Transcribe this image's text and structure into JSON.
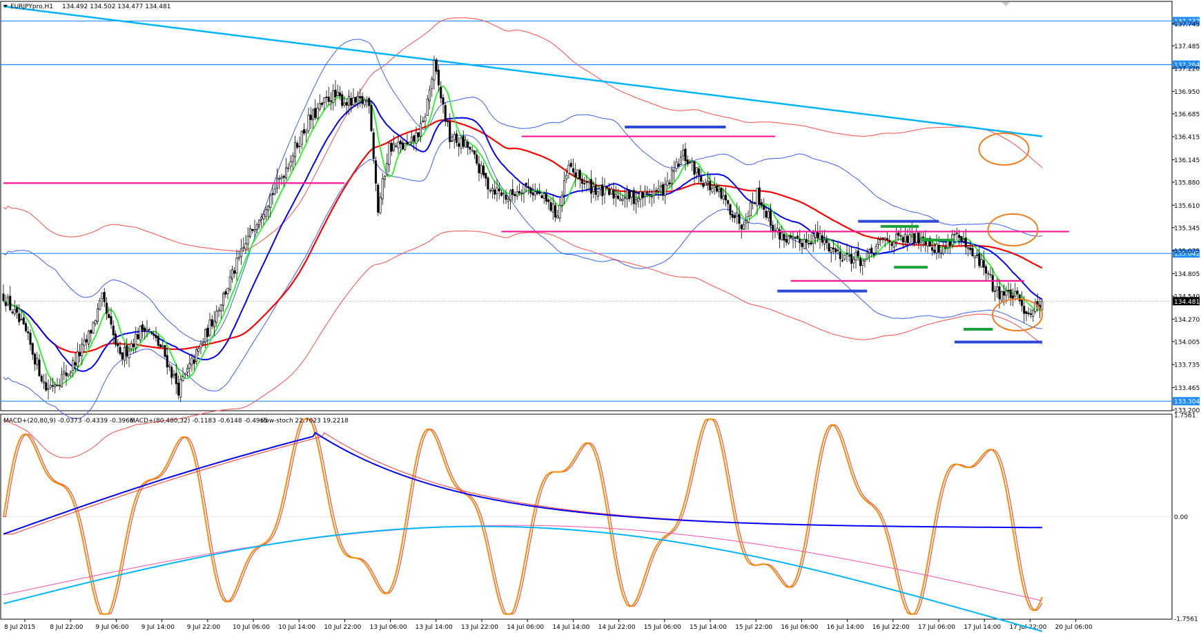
{
  "header": {
    "symbol": "EURJPYpro,H1",
    "ohlc": "134.492 134.502 134.477 134.481"
  },
  "indicator_header": {
    "macd_fast": "MACD+(20,80,9) -0.0373 -0.4339 -0.3966",
    "macd_slow": "MACD+(80,480,32) -0.1183 -0.6148 -0.4965",
    "stoch": "slow-stoch 22.7023 19.2218"
  },
  "colors": {
    "candle": "#000000",
    "ema_green": "#00ff00",
    "ma_blue": "#0000ff",
    "ma_red": "#ff0000",
    "ma_cyan": "#00b4ff",
    "band_blue": "#3a5bff",
    "band_red": "#ff4a4a",
    "level_line": "#1e8cff",
    "level_label_bg": "#1e8cff",
    "magenta": "#ff1493",
    "annot_blue": "#2b47d6",
    "annot_green": "#1aa33a",
    "annot_orange": "#f07d1a",
    "stoch_orange": "#ff8c00",
    "macd_pink": "#ff4fa8"
  },
  "chart_data": [
    {
      "type": "candlestick",
      "symbol": "EURJPYpro",
      "timeframe": "H1",
      "ylim": [
        133.2,
        138.0
      ],
      "y_ticks": [
        "137.745",
        "137.485",
        "137.220",
        "136.950",
        "136.685",
        "136.415",
        "136.145",
        "135.880",
        "135.610",
        "135.345",
        "135.075",
        "134.805",
        "134.540",
        "134.270",
        "134.005",
        "133.735",
        "133.465",
        "133.200"
      ],
      "x_ticks": [
        "8 Jul 2015",
        "8 Jul 22:00",
        "9 Jul 06:00",
        "9 Jul 14:00",
        "9 Jul 22:00",
        "10 Jul 06:00",
        "10 Jul 14:00",
        "10 Jul 22:00",
        "13 Jul 06:00",
        "13 Jul 14:00",
        "13 Jul 22:00",
        "14 Jul 06:00",
        "14 Jul 14:00",
        "14 Jul 22:00",
        "15 Jul 06:00",
        "15 Jul 14:00",
        "15 Jul 22:00",
        "16 Jul 06:00",
        "16 Jul 14:00",
        "16 Jul 22:00",
        "17 Jul 06:00",
        "17 Jul 14:00",
        "17 Jul 22:00",
        "20 Jul 06:00"
      ],
      "horizontal_levels": [
        137.777,
        137.264,
        135.042,
        133.304
      ],
      "level_labels": [
        "137.777",
        "137.264",
        "135.042",
        "133.304"
      ],
      "current_price": 134.481,
      "current_price_label": "134.481",
      "anchors": [
        [
          0,
          134.55
        ],
        [
          10,
          134.1
        ],
        [
          19,
          133.45
        ],
        [
          29,
          133.65
        ],
        [
          37,
          134.0
        ],
        [
          44,
          134.5
        ],
        [
          52,
          133.8
        ],
        [
          63,
          134.2
        ],
        [
          71,
          133.9
        ],
        [
          78,
          133.45
        ],
        [
          87,
          133.9
        ],
        [
          99,
          134.6
        ],
        [
          112,
          135.4
        ],
        [
          123,
          135.9
        ],
        [
          136,
          136.6
        ],
        [
          146,
          136.9
        ],
        [
          156,
          136.8
        ],
        [
          163,
          136.85
        ],
        [
          167,
          135.55
        ],
        [
          172,
          136.3
        ],
        [
          181,
          136.3
        ],
        [
          187,
          136.55
        ],
        [
          192,
          137.25
        ],
        [
          199,
          136.4
        ],
        [
          207,
          136.3
        ],
        [
          216,
          135.85
        ],
        [
          225,
          135.7
        ],
        [
          232,
          135.85
        ],
        [
          240,
          135.7
        ],
        [
          247,
          135.5
        ],
        [
          252,
          136.05
        ],
        [
          260,
          135.85
        ],
        [
          268,
          135.75
        ],
        [
          282,
          135.7
        ],
        [
          295,
          135.8
        ],
        [
          303,
          136.2
        ],
        [
          312,
          135.9
        ],
        [
          320,
          135.7
        ],
        [
          329,
          135.4
        ],
        [
          336,
          135.75
        ],
        [
          344,
          135.3
        ],
        [
          353,
          135.15
        ],
        [
          362,
          135.25
        ],
        [
          372,
          135.05
        ],
        [
          384,
          134.95
        ],
        [
          392,
          135.2
        ],
        [
          402,
          135.2
        ],
        [
          410,
          135.25
        ],
        [
          418,
          135.05
        ],
        [
          424,
          135.3
        ],
        [
          430,
          135.05
        ],
        [
          437,
          134.9
        ],
        [
          442,
          134.6
        ],
        [
          450,
          134.55
        ],
        [
          457,
          134.35
        ],
        [
          463,
          134.48
        ]
      ],
      "indicators": [
        "EMA (green)",
        "MA (blue)",
        "MA (red)",
        "MA (cyan)",
        "Envelope bands (blue)",
        "Envelope bands (red)"
      ]
    },
    {
      "type": "line",
      "title": "MACD+ / slow-stoch",
      "ylim": [
        -1.7561,
        1.7561
      ],
      "y_ticks": [
        "1.7561",
        "0.00",
        "-1.7561"
      ],
      "series": [
        {
          "name": "slow-stoch",
          "color": "#ff8c00"
        },
        {
          "name": "MACD+(20,80,9)",
          "color": "#0000ff"
        },
        {
          "name": "MACD+(80,480,32)",
          "color": "#00b4ff"
        }
      ]
    }
  ],
  "annotations": {
    "magenta_lines": [
      {
        "x0": 0,
        "x1": 152,
        "y": 135.87
      },
      {
        "x0": 231,
        "x1": 344,
        "y": 136.42
      },
      {
        "x0": 222,
        "x1": 475,
        "y": 135.3
      },
      {
        "x0": 351,
        "x1": 455,
        "y": 134.72
      }
    ],
    "blue_bars": [
      {
        "x0": 277,
        "x1": 322,
        "y": 136.53
      },
      {
        "x0": 381,
        "x1": 417,
        "y": 135.42
      },
      {
        "x0": 345,
        "x1": 385,
        "y": 134.6
      },
      {
        "x0": 424,
        "x1": 463,
        "y": 134.0
      }
    ],
    "green_bars": [
      {
        "x0": 391,
        "x1": 408,
        "y": 135.36
      },
      {
        "x0": 409,
        "x1": 424,
        "y": 135.2
      },
      {
        "x0": 397,
        "x1": 412,
        "y": 134.88
      },
      {
        "x0": 428,
        "x1": 441,
        "y": 134.15
      }
    ],
    "circles": [
      {
        "cx": 446,
        "cy": 136.27
      },
      {
        "cx": 450,
        "cy": 135.32
      },
      {
        "cx": 452,
        "cy": 134.32
      }
    ]
  }
}
